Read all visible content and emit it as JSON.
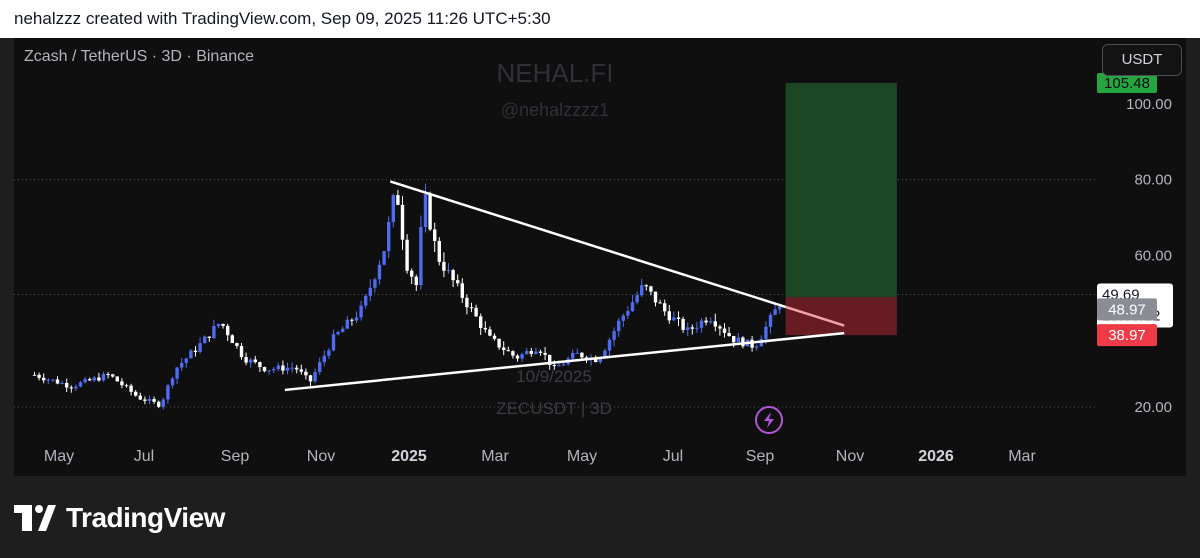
{
  "header": {
    "caption": "nehalzzz created with TradingView.com, Sep 09, 2025 11:26 UTC+5:30"
  },
  "symbol_line": "Zcash / TetherUS · 3D · Binance",
  "watermark": {
    "brand": "NEHAL.FI",
    "handle": "@nehalzzzz1",
    "date_overlay": "10/9/2025",
    "ticker_overlay": "ZECUSDT | 3D"
  },
  "currency_button": "USDT",
  "footer": {
    "brand": "TradingView"
  },
  "colors": {
    "up": "#4f6cf0",
    "down": "#ffffff",
    "target_zone": "#1f4d27",
    "stop_zone": "#6b1d24",
    "target_label": "#26a641",
    "stop_label": "#ef3b48",
    "current_label": "#ffffff",
    "entry_label": "#8a8d94"
  },
  "icons": {
    "flash": "lightning-bolt-icon",
    "logo": "tradingview-logo-icon"
  },
  "chart_data": {
    "type": "candlestick",
    "interval": "3D",
    "ylim": [
      15,
      105.48
    ],
    "y_ticks": [
      "20.00",
      "60.00",
      "80.00",
      "100.00"
    ],
    "x_labels": [
      "May",
      "Jul",
      "Sep",
      "Nov",
      "2025",
      "Mar",
      "May",
      "Jul",
      "Sep",
      "Nov",
      "2026",
      "Mar"
    ],
    "gridlines": [
      20,
      80,
      49.69
    ],
    "price_series": [
      {
        "x": "2024-04-15",
        "y": 28.5
      },
      {
        "x": "2024-05-10",
        "y": 25.5
      },
      {
        "x": "2024-06-05",
        "y": 28.5
      },
      {
        "x": "2024-06-25",
        "y": 22.5
      },
      {
        "x": "2024-07-10",
        "y": 20.5
      },
      {
        "x": "2024-07-20",
        "y": 30.0
      },
      {
        "x": "2024-08-05",
        "y": 36.0
      },
      {
        "x": "2024-08-20",
        "y": 42.5
      },
      {
        "x": "2024-09-05",
        "y": 33.0
      },
      {
        "x": "2024-09-20",
        "y": 30.0
      },
      {
        "x": "2024-10-10",
        "y": 30.5
      },
      {
        "x": "2024-10-20",
        "y": 26.5
      },
      {
        "x": "2024-11-05",
        "y": 38.0
      },
      {
        "x": "2024-11-25",
        "y": 46.0
      },
      {
        "x": "2024-12-10",
        "y": 62.0
      },
      {
        "x": "2024-12-18",
        "y": 78.0
      },
      {
        "x": "2024-12-25",
        "y": 58.0
      },
      {
        "x": "2025-01-01",
        "y": 52.0
      },
      {
        "x": "2025-01-06",
        "y": 76.0
      },
      {
        "x": "2025-01-15",
        "y": 60.0
      },
      {
        "x": "2025-01-31",
        "y": 50.0
      },
      {
        "x": "2025-02-20",
        "y": 38.0
      },
      {
        "x": "2025-03-10",
        "y": 33.0
      },
      {
        "x": "2025-03-25",
        "y": 36.0
      },
      {
        "x": "2025-04-05",
        "y": 30.0
      },
      {
        "x": "2025-04-20",
        "y": 34.0
      },
      {
        "x": "2025-05-05",
        "y": 32.5
      },
      {
        "x": "2025-05-20",
        "y": 43.0
      },
      {
        "x": "2025-06-05",
        "y": 52.0
      },
      {
        "x": "2025-06-20",
        "y": 45.0
      },
      {
        "x": "2025-07-05",
        "y": 40.0
      },
      {
        "x": "2025-07-20",
        "y": 44.0
      },
      {
        "x": "2025-08-05",
        "y": 38.0
      },
      {
        "x": "2025-08-20",
        "y": 36.0
      },
      {
        "x": "2025-09-01",
        "y": 44.0
      },
      {
        "x": "2025-09-09",
        "y": 49.69
      }
    ],
    "trendlines": [
      {
        "name": "upper",
        "from": {
          "x": "2024-12-14",
          "y": 79.5
        },
        "to": {
          "x": "2025-10-20",
          "y": 41.5
        }
      },
      {
        "name": "lower",
        "from": {
          "x": "2024-10-03",
          "y": 24.5
        },
        "to": {
          "x": "2025-10-20",
          "y": 39.5
        }
      }
    ],
    "position_tool": {
      "target": 105.48,
      "entry": 48.97,
      "stop": 38.97,
      "from": "2025-09-10",
      "to": "2025-11-25"
    },
    "price_labels": {
      "target": "105.48",
      "current": "49.69",
      "countdown": "18:03:12",
      "entry": "48.97",
      "stop": "38.97"
    }
  }
}
